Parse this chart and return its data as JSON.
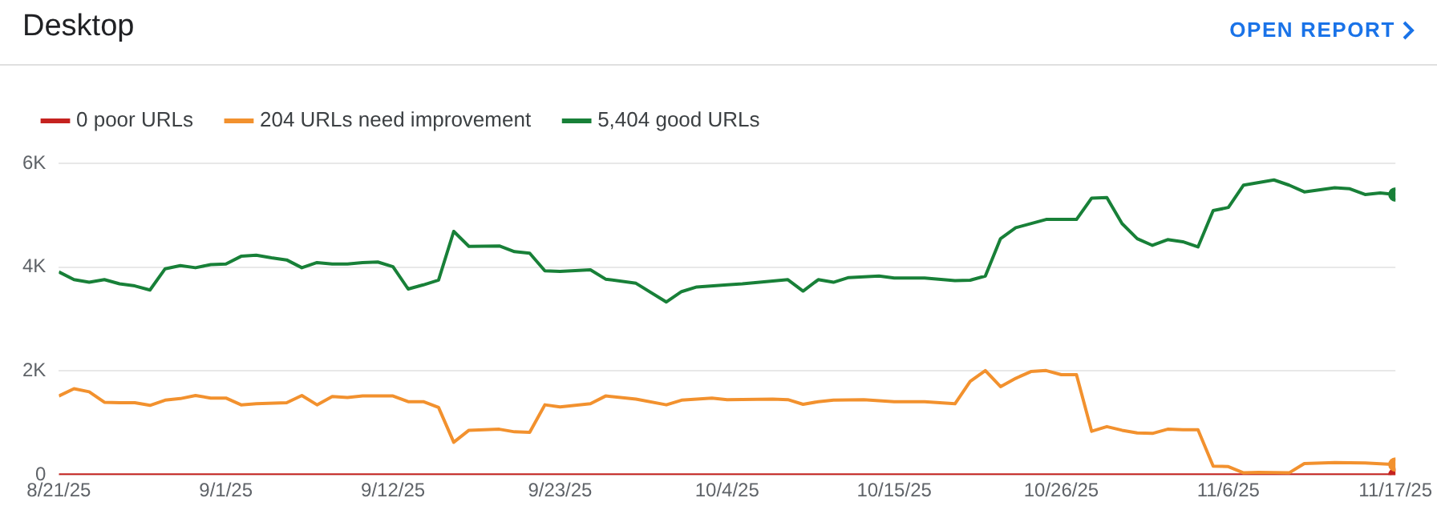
{
  "chart_data": {
    "type": "line",
    "title": "Desktop",
    "annotations": [
      "OPEN REPORT"
    ],
    "xlim": [
      "--08-21",
      "--11-17"
    ],
    "xticks": [
      {
        "value": "--08-21",
        "label": "8/21/25"
      },
      {
        "value": "--09-01",
        "label": "9/1/25"
      },
      {
        "value": "--09-12",
        "label": "9/12/25"
      },
      {
        "value": "--09-23",
        "label": "9/23/25"
      },
      {
        "value": "--10-04",
        "label": "10/4/25"
      },
      {
        "value": "--10-15",
        "label": "10/15/25"
      },
      {
        "value": "--10-26",
        "label": "10/26/25"
      },
      {
        "value": "--11-06",
        "label": "11/6/25"
      },
      {
        "value": "--11-17",
        "label": "11/17/25"
      }
    ],
    "ylim": [
      0,
      6000
    ],
    "yticks": [
      0,
      {
        "value": 2000,
        "label": "2K"
      },
      {
        "value": 4000,
        "label": "4K"
      },
      {
        "value": 6000,
        "label": "6K"
      }
    ],
    "grid": "y",
    "legend": "top left",
    "series": [
      {
        "name": "0 poor URLs",
        "color": "#c5221f",
        "x": [
          "--08-21",
          "--11-17"
        ],
        "values": [
          0,
          0
        ]
      },
      {
        "name": "204 URLs need improvement",
        "color": "#f2912e",
        "x": [
          "--08-21",
          "--08-22",
          "--08-23",
          "--08-24",
          "--08-25",
          "--08-26",
          "--08-27",
          "--08-28",
          "--08-29",
          "--08-30",
          "--08-31",
          "--09-01",
          "--09-02",
          "--09-03",
          "--09-05",
          "--09-06",
          "--09-07",
          "--09-08",
          "--09-09",
          "--09-10",
          "--09-12",
          "--09-13",
          "--09-14",
          "--09-15",
          "--09-16",
          "--09-17",
          "--09-19",
          "--09-20",
          "--09-21",
          "--09-22",
          "--09-23",
          "--09-25",
          "--09-26",
          "--09-28",
          "--09-30",
          "--10-01",
          "--10-03",
          "--10-04",
          "--10-07",
          "--10-08",
          "--10-09",
          "--10-10",
          "--10-11",
          "--10-13",
          "--10-15",
          "--10-17",
          "--10-19",
          "--10-20",
          "--10-21",
          "--10-22",
          "--10-23",
          "--10-24",
          "--10-25",
          "--10-26",
          "--10-27",
          "--10-28",
          "--10-29",
          "--10-30",
          "--10-31",
          "--11-01",
          "--11-02",
          "--11-03",
          "--11-04",
          "--11-05",
          "--11-06",
          "--11-07",
          "--11-08",
          "--11-10",
          "--11-11",
          "--11-13",
          "--11-15",
          "--11-17"
        ],
        "values": [
          1520,
          1660,
          1600,
          1400,
          1390,
          1390,
          1340,
          1440,
          1470,
          1530,
          1480,
          1480,
          1350,
          1370,
          1390,
          1530,
          1350,
          1510,
          1490,
          1520,
          1520,
          1410,
          1410,
          1300,
          630,
          860,
          880,
          830,
          820,
          1350,
          1310,
          1370,
          1520,
          1460,
          1350,
          1440,
          1480,
          1450,
          1460,
          1450,
          1360,
          1410,
          1440,
          1450,
          1410,
          1410,
          1370,
          1800,
          2010,
          1700,
          1860,
          1990,
          2010,
          1930,
          1930,
          840,
          930,
          860,
          810,
          800,
          880,
          870,
          870,
          170,
          160,
          40,
          50,
          40,
          220,
          240,
          230,
          200
        ]
      },
      {
        "name": "5,404 good URLs",
        "color": "#188038",
        "x": [
          "--08-21",
          "--08-22",
          "--08-23",
          "--08-24",
          "--08-25",
          "--08-26",
          "--08-27",
          "--08-28",
          "--08-29",
          "--08-30",
          "--08-31",
          "--09-01",
          "--09-02",
          "--09-03",
          "--09-04",
          "--09-05",
          "--09-06",
          "--09-07",
          "--09-08",
          "--09-09",
          "--09-10",
          "--09-11",
          "--09-12",
          "--09-13",
          "--09-14",
          "--09-15",
          "--09-16",
          "--09-17",
          "--09-19",
          "--09-20",
          "--09-21",
          "--09-22",
          "--09-23",
          "--09-25",
          "--09-26",
          "--09-28",
          "--09-30",
          "--10-01",
          "--10-02",
          "--10-04",
          "--10-05",
          "--10-08",
          "--10-09",
          "--10-10",
          "--10-11",
          "--10-12",
          "--10-14",
          "--10-15",
          "--10-17",
          "--10-19",
          "--10-20",
          "--10-21",
          "--10-22",
          "--10-23",
          "--10-25",
          "--10-27",
          "--10-28",
          "--10-29",
          "--10-30",
          "--10-31",
          "--11-01",
          "--11-02",
          "--11-03",
          "--11-04",
          "--11-05",
          "--11-06",
          "--11-07",
          "--11-09",
          "--11-10",
          "--11-11",
          "--11-13",
          "--11-14",
          "--11-15",
          "--11-16",
          "--11-17"
        ],
        "values": [
          3910,
          3760,
          3710,
          3760,
          3680,
          3640,
          3560,
          3970,
          4030,
          3990,
          4050,
          4060,
          4210,
          4230,
          4180,
          4140,
          3990,
          4090,
          4060,
          4060,
          4090,
          4100,
          4010,
          3580,
          3660,
          3750,
          4690,
          4400,
          4410,
          4300,
          4270,
          3930,
          3920,
          3950,
          3770,
          3690,
          3330,
          3530,
          3620,
          3660,
          3680,
          3760,
          3540,
          3760,
          3710,
          3800,
          3830,
          3790,
          3790,
          3740,
          3750,
          3830,
          4550,
          4760,
          4920,
          4920,
          5330,
          5340,
          4840,
          4550,
          4420,
          4530,
          4490,
          4390,
          5090,
          5150,
          5580,
          5680,
          5580,
          5450,
          5530,
          5510,
          5400,
          5430,
          5400
        ]
      }
    ]
  }
}
